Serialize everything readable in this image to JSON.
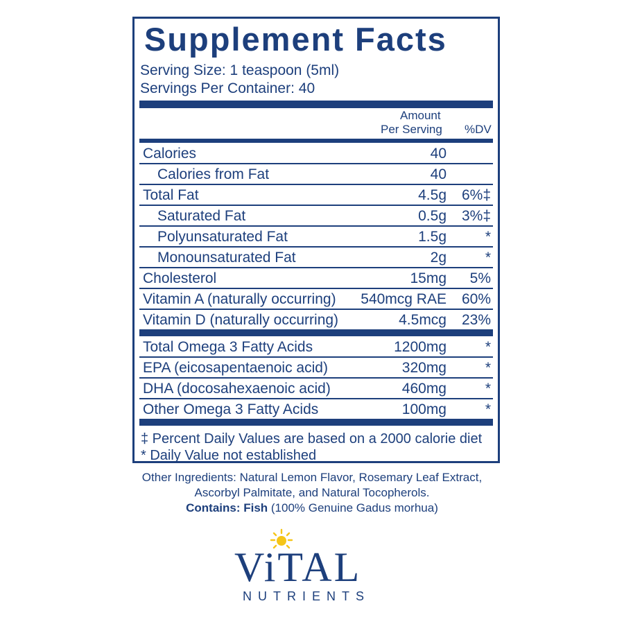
{
  "label": {
    "title": "Supplement Facts",
    "serving_size": "Serving Size: 1 teaspoon (5ml)",
    "servings_per_container": "Servings Per Container: 40",
    "header": {
      "amount_line1": "Amount",
      "amount_line2": "Per Serving",
      "dv": "%DV"
    },
    "rows": [
      {
        "name": "Calories",
        "amount": "40",
        "dv": "",
        "indent": false
      },
      {
        "name": "Calories from Fat",
        "amount": "40",
        "dv": "",
        "indent": true
      },
      {
        "name": "Total Fat",
        "amount": "4.5g",
        "dv": "6%‡",
        "indent": false
      },
      {
        "name": "Saturated Fat",
        "amount": "0.5g",
        "dv": "3%‡",
        "indent": true
      },
      {
        "name": "Polyunsaturated Fat",
        "amount": "1.5g",
        "dv": "*",
        "indent": true
      },
      {
        "name": "Monounsaturated Fat",
        "amount": "2g",
        "dv": "*",
        "indent": true
      },
      {
        "name": "Cholesterol",
        "amount": "15mg",
        "dv": "5%",
        "indent": false
      },
      {
        "name": "Vitamin A (naturally occurring)",
        "amount": "540mcg RAE",
        "dv": "60%",
        "indent": false
      },
      {
        "name": "Vitamin D (naturally occurring)",
        "amount": "4.5mcg",
        "dv": "23%",
        "indent": false
      }
    ],
    "omega_rows": [
      {
        "name": "Total Omega 3 Fatty Acids",
        "amount": "1200mg",
        "dv": "*"
      },
      {
        "name": "EPA (eicosapentaenoic acid)",
        "amount": "320mg",
        "dv": "*"
      },
      {
        "name": "DHA (docosahexaenoic acid)",
        "amount": "460mg",
        "dv": "*"
      },
      {
        "name": "Other Omega 3 Fatty Acids",
        "amount": "100mg",
        "dv": "*"
      }
    ],
    "footnote1": "‡ Percent Daily Values are based on a 2000 calorie diet",
    "footnote2": "* Daily Value not established"
  },
  "other_ingredients": {
    "line1": "Other Ingredients: Natural Lemon Flavor, Rosemary Leaf Extract,",
    "line2": "Ascorbyl Palmitate, and Natural Tocopherols.",
    "contains_label": "Contains: Fish",
    "contains_detail": " (100% Genuine Gadus morhua)"
  },
  "brand": {
    "name": "ViTAL",
    "sub": "NUTRIENTS",
    "primary_color": "#1d3f7c",
    "sun_color": "#f5c518",
    "icon": "sun-icon"
  }
}
